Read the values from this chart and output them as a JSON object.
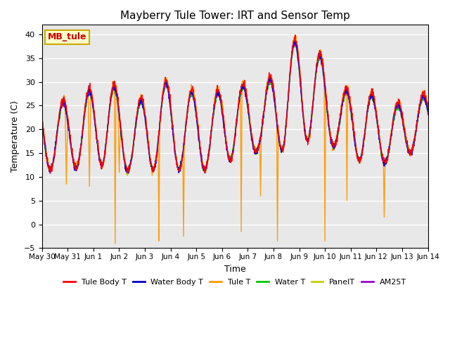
{
  "title": "Mayberry Tule Tower: IRT and Sensor Temp",
  "xlabel": "Time",
  "ylabel": "Temperature (C)",
  "ylim": [
    -5,
    42
  ],
  "yticks": [
    -5,
    0,
    5,
    10,
    15,
    20,
    25,
    30,
    35,
    40
  ],
  "legend_label": "MB_tule",
  "series_colors": {
    "Tule Body T": "#ff0000",
    "Water Body T": "#0000cc",
    "Tule T": "#ff9900",
    "Water T": "#00cc00",
    "PanelT": "#cccc00",
    "AM25T": "#9900cc"
  },
  "xtick_labels": [
    "May 30",
    "May 31",
    "Jun 1",
    "Jun 2",
    "Jun 3",
    "Jun 4",
    "Jun 5",
    "Jun 6",
    "Jun 7",
    "Jun 8",
    "Jun 9",
    "Jun 10",
    "Jun 11",
    "Jun 12",
    "Jun 13",
    "Jun 14"
  ],
  "n_days": 15,
  "spike_times": [
    2.85,
    4.55,
    5.5,
    7.75,
    8.5,
    9.15,
    11.0,
    11.85,
    13.3
  ],
  "spike_bottoms": [
    -4.0,
    -3.5,
    -2.5,
    -1.5,
    6.0,
    -3.5,
    -3.5,
    5.0,
    1.5
  ],
  "day_peaks": [
    26.0,
    27.0,
    32.0,
    24.5,
    31.0,
    29.0,
    27.0,
    31.0,
    27.0,
    39.0,
    39.5,
    28.5,
    29.0,
    25.0,
    27.5
  ],
  "day_valleys": [
    11.5,
    12.0,
    12.5,
    11.0,
    11.5,
    11.5,
    11.5,
    14.0,
    15.5,
    15.5,
    18.0,
    16.0,
    13.0,
    13.0,
    15.5
  ],
  "tule_t_extra_spikes": [
    0.95,
    1.85,
    3.0
  ],
  "tule_t_extra_bottoms": [
    8.5,
    8.0,
    11.0
  ]
}
